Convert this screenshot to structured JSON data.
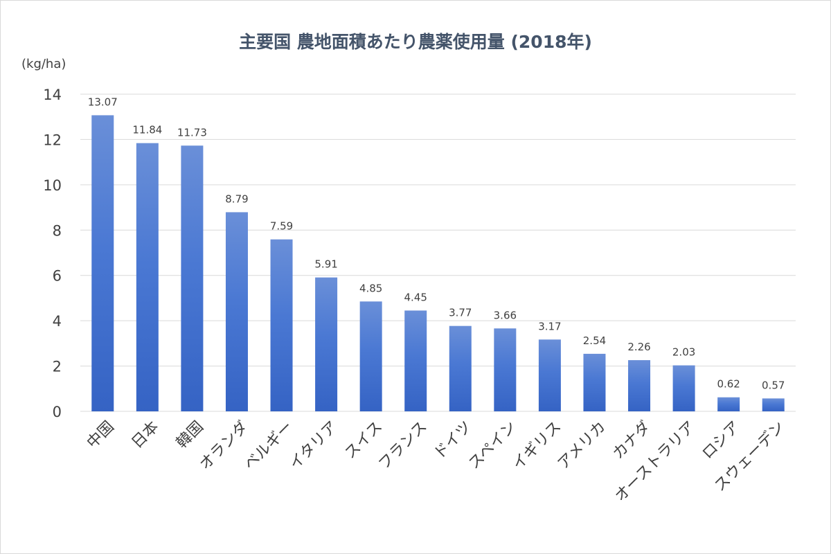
{
  "chart_data": {
    "type": "bar",
    "title": "主要国 農地面積あたり農薬使用量 (2018年)",
    "unit_label": "(kg/ha)",
    "categories": [
      "中国",
      "日本",
      "韓国",
      "オランダ",
      "ベルギー",
      "イタリア",
      "スイス",
      "フランス",
      "ドイツ",
      "スペイン",
      "イギリス",
      "アメリカ",
      "カナダ",
      "オーストラリア",
      "ロシア",
      "スウェーデン"
    ],
    "values": [
      13.07,
      11.84,
      11.73,
      8.79,
      7.59,
      5.91,
      4.85,
      4.45,
      3.77,
      3.66,
      3.17,
      2.54,
      2.26,
      2.03,
      0.62,
      0.57
    ],
    "value_labels": [
      "13.07",
      "11.84",
      "11.73",
      "8.79",
      "7.59",
      "5.91",
      "4.85",
      "4.45",
      "3.77",
      "3.66",
      "3.17",
      "2.54",
      "2.26",
      "2.03",
      "0.62",
      "0.57"
    ],
    "ylim": [
      0,
      14
    ],
    "yticks": [
      0,
      2,
      4,
      6,
      8,
      10,
      12,
      14
    ],
    "grid": true,
    "legend": "none",
    "bar_color_top": "#6a8fd8",
    "bar_color_bottom": "#3563c4"
  }
}
